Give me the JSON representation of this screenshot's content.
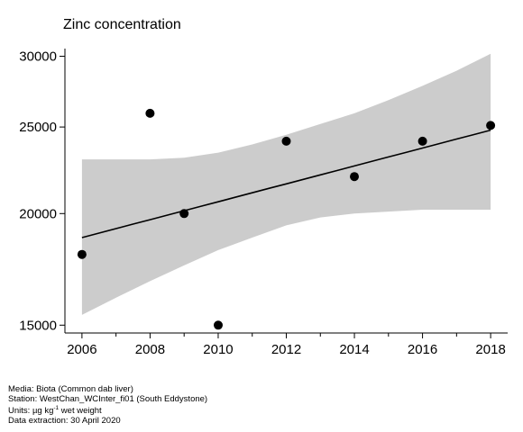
{
  "chart_data": {
    "type": "scatter",
    "title": "Zinc concentration",
    "xlabel": "",
    "ylabel": "",
    "xlim": [
      2005.5,
      2018.5
    ],
    "ylim": [
      14700,
      30600
    ],
    "y_scale": "log",
    "x_ticks": [
      2006,
      2008,
      2010,
      2012,
      2014,
      2016,
      2018
    ],
    "x_minor_ticks": [
      2007,
      2009,
      2011,
      2013,
      2015,
      2017
    ],
    "y_ticks": [
      15000,
      20000,
      25000,
      30000
    ],
    "points": [
      {
        "x": 2006,
        "y": 18000
      },
      {
        "x": 2008,
        "y": 25900
      },
      {
        "x": 2009,
        "y": 20000
      },
      {
        "x": 2010,
        "y": 15000
      },
      {
        "x": 2012,
        "y": 24100
      },
      {
        "x": 2014,
        "y": 22000
      },
      {
        "x": 2016,
        "y": 24100
      },
      {
        "x": 2018,
        "y": 25100
      }
    ],
    "trend": {
      "x": [
        2006,
        2018
      ],
      "y": [
        18800,
        24800
      ]
    },
    "confidence_band": {
      "x": [
        2006,
        2007,
        2008,
        2009,
        2010,
        2011,
        2012,
        2013,
        2014,
        2015,
        2016,
        2017,
        2018
      ],
      "upper": [
        23000,
        23000,
        23000,
        23100,
        23400,
        23900,
        24500,
        25200,
        25900,
        26800,
        27800,
        28900,
        30200
      ],
      "lower": [
        15400,
        16100,
        16800,
        17500,
        18200,
        18800,
        19400,
        19800,
        20000,
        20100,
        20200,
        20200,
        20200
      ]
    },
    "colors": {
      "band": "#cccccc",
      "line": "#000000",
      "points": "#000000"
    }
  },
  "footer": {
    "media": "Media: Biota (Common dab liver)",
    "station": "Station: WestChan_WCInter_fi01 (South Eddystone)",
    "units_prefix": "Units: ",
    "units_mu": "µg kg",
    "units_sup": "-1",
    "units_suffix": " wet weight",
    "extraction": "Data extraction: 30 April 2020"
  }
}
